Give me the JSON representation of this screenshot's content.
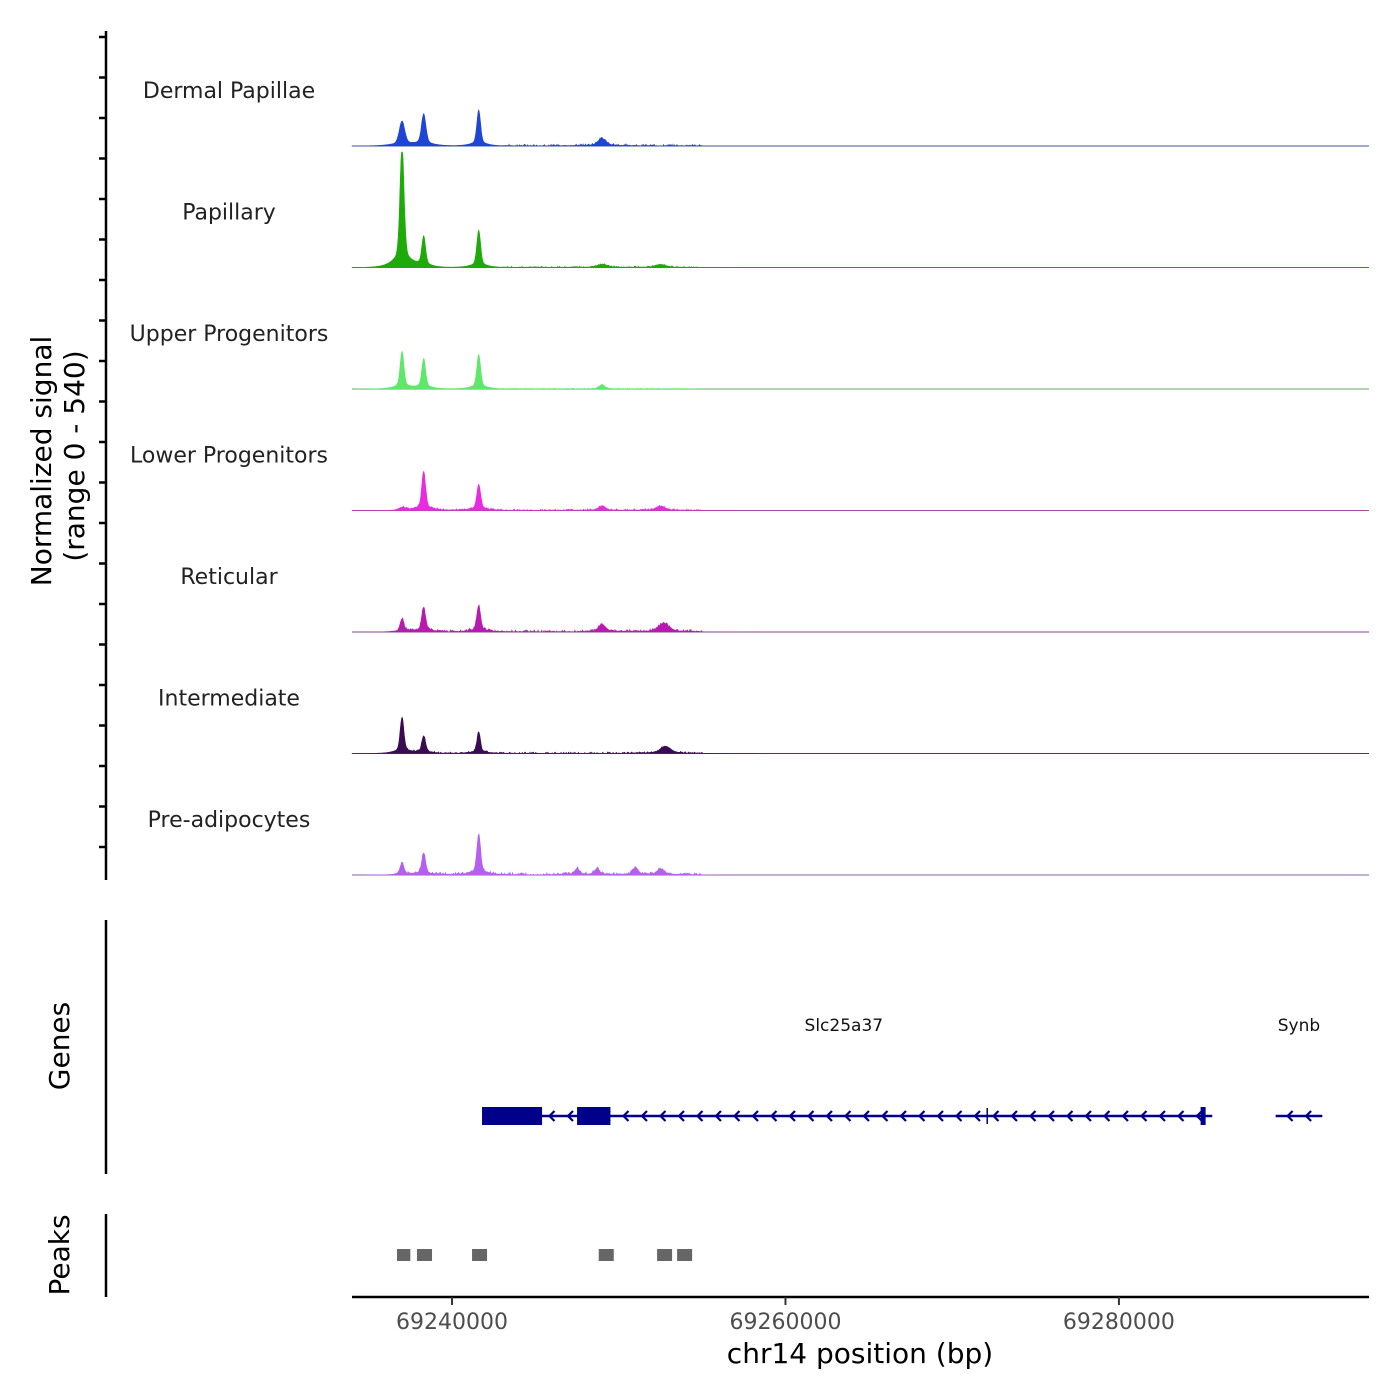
{
  "chart_data": {
    "type": "coverage",
    "chromosome": "chr14",
    "x_range": [
      69234000,
      69295000
    ],
    "x_ticks": [
      69240000,
      69260000,
      69280000
    ],
    "x_tick_labels": [
      "69240000",
      "69260000",
      "69280000"
    ],
    "xlabel": "chr14 position (bp)",
    "ylabel_line1": "Normalized signal",
    "ylabel_line2": "(range 0 - 540)",
    "y_range": [
      0,
      540
    ],
    "tracks": [
      {
        "name": "Dermal Papillae",
        "color": "#1f45d6",
        "peaks": [
          [
            69237000,
            0.17,
            160
          ],
          [
            69238300,
            0.22,
            130
          ],
          [
            69241600,
            0.25,
            110
          ],
          [
            69249000,
            0.05,
            250
          ]
        ],
        "noise": [
          [
            69243000,
            69255000,
            0.015
          ]
        ]
      },
      {
        "name": "Papillary",
        "color": "#1faa0b",
        "peaks": [
          [
            69237000,
            0.85,
            120
          ],
          [
            69238300,
            0.21,
            110
          ],
          [
            69241600,
            0.26,
            110
          ],
          [
            69249000,
            0.02,
            300
          ],
          [
            69252500,
            0.02,
            300
          ]
        ],
        "noise": [
          [
            69243000,
            69255000,
            0.01
          ]
        ]
      },
      {
        "name": "Upper Progenitors",
        "color": "#5ee86a",
        "peaks": [
          [
            69237000,
            0.26,
            110
          ],
          [
            69238300,
            0.21,
            110
          ],
          [
            69241600,
            0.24,
            110
          ],
          [
            69249000,
            0.03,
            150
          ]
        ],
        "noise": [
          [
            69243000,
            69255000,
            0.006
          ]
        ]
      },
      {
        "name": "Lower Progenitors",
        "color": "#e82ae0",
        "peaks": [
          [
            69237000,
            0.02,
            200
          ],
          [
            69238300,
            0.27,
            110
          ],
          [
            69241600,
            0.18,
            110
          ],
          [
            69249000,
            0.03,
            200
          ],
          [
            69252500,
            0.03,
            250
          ]
        ],
        "noise": [
          [
            69237000,
            69255000,
            0.012
          ]
        ]
      },
      {
        "name": "Reticular",
        "color": "#b81ab0",
        "peaks": [
          [
            69237000,
            0.09,
            110
          ],
          [
            69238300,
            0.17,
            110
          ],
          [
            69241600,
            0.18,
            110
          ],
          [
            69249000,
            0.05,
            200
          ],
          [
            69252700,
            0.06,
            300
          ]
        ],
        "noise": [
          [
            69237000,
            69255000,
            0.018
          ]
        ]
      },
      {
        "name": "Intermediate",
        "color": "#3a0a52",
        "peaks": [
          [
            69237000,
            0.25,
            110
          ],
          [
            69238300,
            0.12,
            110
          ],
          [
            69241600,
            0.15,
            100
          ],
          [
            69252800,
            0.05,
            300
          ]
        ],
        "noise": [
          [
            69237000,
            69255000,
            0.012
          ]
        ]
      },
      {
        "name": "Pre-adipocytes",
        "color": "#b65ef0",
        "peaks": [
          [
            69237000,
            0.08,
            110
          ],
          [
            69238300,
            0.15,
            110
          ],
          [
            69241600,
            0.28,
            110
          ],
          [
            69247500,
            0.04,
            150
          ],
          [
            69248700,
            0.04,
            150
          ],
          [
            69251000,
            0.05,
            150
          ],
          [
            69252500,
            0.04,
            200
          ]
        ],
        "noise": [
          [
            69236500,
            69255000,
            0.02
          ]
        ]
      }
    ],
    "genes_label": "Genes",
    "genes": [
      {
        "name": "Slc25a37",
        "strand": "-",
        "start": 69241800,
        "end": 69285600,
        "label_pos": 69263500,
        "exons": [
          [
            69241800,
            69245400
          ],
          [
            69247500,
            69249500
          ],
          [
            69284900,
            69285200
          ]
        ],
        "marks": [
          69272100
        ]
      },
      {
        "name": "Synb",
        "strand": "-",
        "start": 69289400,
        "end": 69292200,
        "label_pos": 69290800,
        "exons": [],
        "marks": []
      }
    ],
    "gene_color": "#00008b",
    "peaks_label": "Peaks",
    "peak_color": "#666666",
    "peak_regions": [
      [
        69236700,
        69237500
      ],
      [
        69237900,
        69238800
      ],
      [
        69241200,
        69242100
      ],
      [
        69248800,
        69249700
      ],
      [
        69252300,
        69253200
      ],
      [
        69253500,
        69254400
      ]
    ]
  }
}
